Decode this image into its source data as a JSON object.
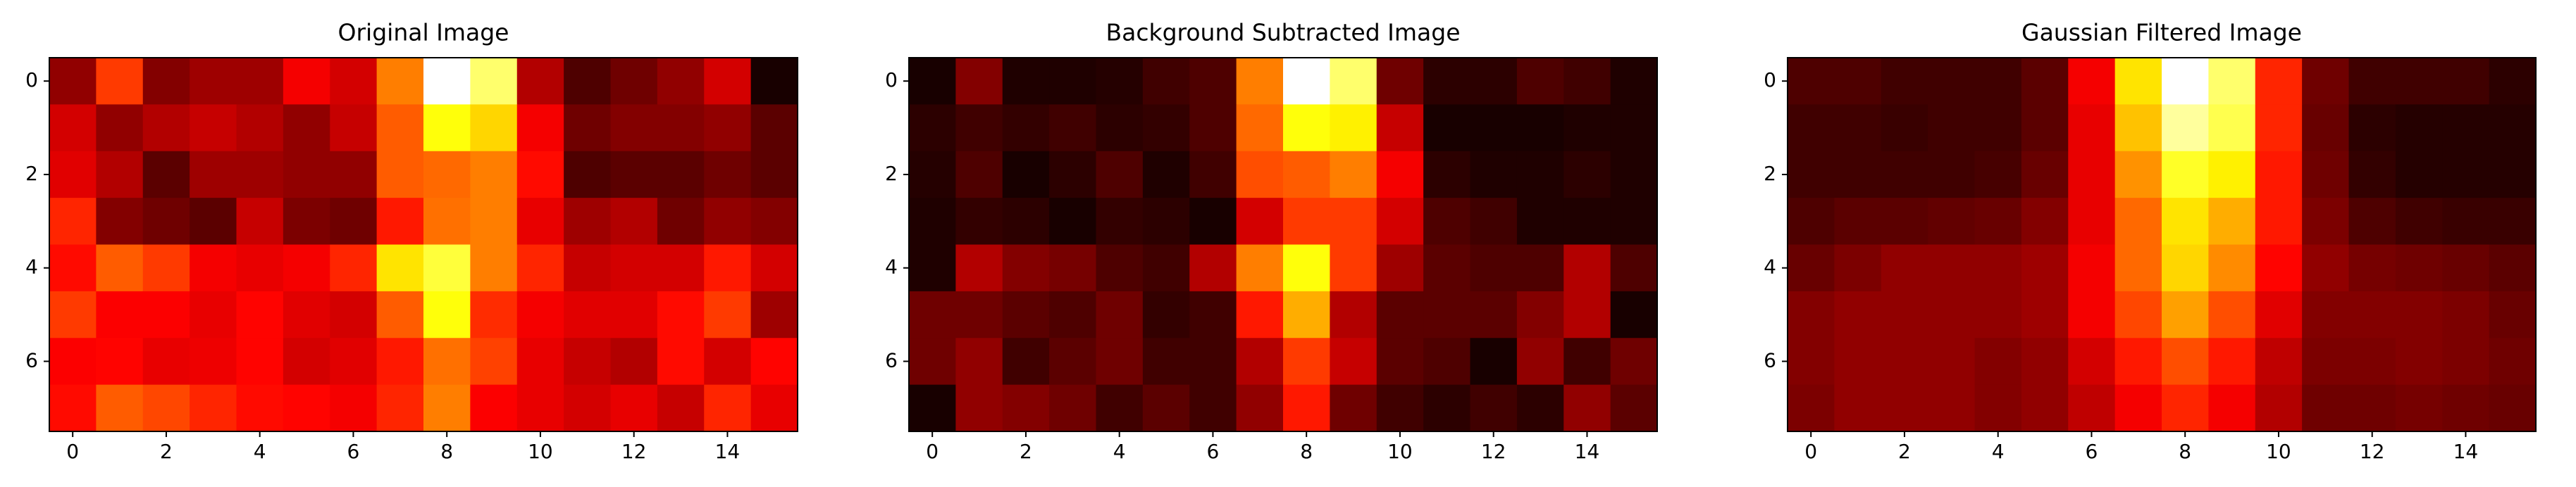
{
  "chart_data": [
    {
      "type": "heatmap",
      "title": "Original Image",
      "colormap": "hot",
      "xlim": [
        -0.5,
        15.5
      ],
      "ylim": [
        7.5,
        -0.5
      ],
      "xticks": [
        0,
        2,
        4,
        6,
        8,
        10,
        12,
        14
      ],
      "yticks": [
        0,
        2,
        4,
        6
      ],
      "z": [
        [
          0.2,
          0.45,
          0.18,
          0.22,
          0.22,
          0.35,
          0.3,
          0.55,
          1.0,
          0.85,
          0.25,
          0.1,
          0.15,
          0.2,
          0.3,
          0.02
        ],
        [
          0.3,
          0.2,
          0.25,
          0.28,
          0.25,
          0.2,
          0.28,
          0.5,
          0.75,
          0.68,
          0.35,
          0.15,
          0.18,
          0.18,
          0.2,
          0.12
        ],
        [
          0.32,
          0.25,
          0.12,
          0.22,
          0.22,
          0.2,
          0.2,
          0.5,
          0.52,
          0.55,
          0.38,
          0.1,
          0.12,
          0.12,
          0.15,
          0.12
        ],
        [
          0.42,
          0.18,
          0.15,
          0.12,
          0.28,
          0.17,
          0.15,
          0.4,
          0.53,
          0.55,
          0.33,
          0.22,
          0.25,
          0.15,
          0.2,
          0.18
        ],
        [
          0.38,
          0.5,
          0.45,
          0.35,
          0.33,
          0.35,
          0.42,
          0.7,
          0.8,
          0.55,
          0.42,
          0.28,
          0.3,
          0.3,
          0.4,
          0.3
        ],
        [
          0.45,
          0.36,
          0.36,
          0.33,
          0.37,
          0.32,
          0.3,
          0.5,
          0.75,
          0.43,
          0.35,
          0.32,
          0.32,
          0.38,
          0.45,
          0.22
        ],
        [
          0.36,
          0.37,
          0.33,
          0.34,
          0.37,
          0.3,
          0.32,
          0.4,
          0.53,
          0.46,
          0.33,
          0.28,
          0.25,
          0.38,
          0.3,
          0.37
        ],
        [
          0.38,
          0.5,
          0.47,
          0.42,
          0.38,
          0.37,
          0.35,
          0.42,
          0.55,
          0.36,
          0.33,
          0.3,
          0.33,
          0.28,
          0.42,
          0.33
        ]
      ]
    },
    {
      "type": "heatmap",
      "title": "Background Subtracted Image",
      "colormap": "hot",
      "xlim": [
        -0.5,
        15.5
      ],
      "ylim": [
        7.5,
        -0.5
      ],
      "xticks": [
        0,
        2,
        4,
        6,
        8,
        10,
        12,
        14
      ],
      "yticks": [
        0,
        2,
        4,
        6
      ],
      "z": [
        [
          0.02,
          0.18,
          0.03,
          0.03,
          0.04,
          0.08,
          0.1,
          0.55,
          1.0,
          0.85,
          0.15,
          0.05,
          0.05,
          0.1,
          0.08,
          0.03
        ],
        [
          0.05,
          0.08,
          0.06,
          0.08,
          0.05,
          0.06,
          0.1,
          0.52,
          0.75,
          0.72,
          0.28,
          0.02,
          0.02,
          0.02,
          0.03,
          0.03
        ],
        [
          0.04,
          0.1,
          0.02,
          0.05,
          0.1,
          0.03,
          0.08,
          0.48,
          0.5,
          0.55,
          0.35,
          0.05,
          0.03,
          0.03,
          0.05,
          0.03
        ],
        [
          0.03,
          0.06,
          0.05,
          0.02,
          0.06,
          0.05,
          0.02,
          0.3,
          0.45,
          0.45,
          0.3,
          0.1,
          0.08,
          0.03,
          0.03,
          0.03
        ],
        [
          0.03,
          0.25,
          0.18,
          0.16,
          0.1,
          0.08,
          0.25,
          0.55,
          0.75,
          0.45,
          0.22,
          0.12,
          0.1,
          0.1,
          0.25,
          0.1
        ],
        [
          0.15,
          0.15,
          0.12,
          0.1,
          0.15,
          0.06,
          0.08,
          0.4,
          0.62,
          0.25,
          0.12,
          0.12,
          0.12,
          0.18,
          0.25,
          0.02
        ],
        [
          0.15,
          0.2,
          0.08,
          0.12,
          0.15,
          0.08,
          0.08,
          0.25,
          0.45,
          0.28,
          0.12,
          0.1,
          0.02,
          0.2,
          0.08,
          0.15
        ],
        [
          0.02,
          0.2,
          0.18,
          0.15,
          0.08,
          0.12,
          0.08,
          0.2,
          0.4,
          0.15,
          0.08,
          0.05,
          0.08,
          0.05,
          0.2,
          0.12
        ]
      ]
    },
    {
      "type": "heatmap",
      "title": "Gaussian Filtered Image",
      "colormap": "hot",
      "xlim": [
        -0.5,
        15.5
      ],
      "ylim": [
        7.5,
        -0.5
      ],
      "xticks": [
        0,
        2,
        4,
        6,
        8,
        10,
        12,
        14
      ],
      "yticks": [
        0,
        2,
        4,
        6
      ],
      "z": [
        [
          0.1,
          0.1,
          0.08,
          0.08,
          0.08,
          0.12,
          0.35,
          0.7,
          1.0,
          0.85,
          0.42,
          0.15,
          0.08,
          0.08,
          0.08,
          0.05
        ],
        [
          0.08,
          0.08,
          0.07,
          0.08,
          0.08,
          0.12,
          0.33,
          0.65,
          0.9,
          0.82,
          0.42,
          0.14,
          0.05,
          0.04,
          0.04,
          0.04
        ],
        [
          0.08,
          0.08,
          0.08,
          0.08,
          0.09,
          0.14,
          0.33,
          0.58,
          0.78,
          0.72,
          0.4,
          0.15,
          0.06,
          0.04,
          0.04,
          0.04
        ],
        [
          0.1,
          0.12,
          0.12,
          0.13,
          0.14,
          0.18,
          0.33,
          0.52,
          0.7,
          0.62,
          0.4,
          0.17,
          0.1,
          0.08,
          0.07,
          0.07
        ],
        [
          0.14,
          0.17,
          0.2,
          0.2,
          0.2,
          0.22,
          0.35,
          0.52,
          0.68,
          0.57,
          0.37,
          0.2,
          0.16,
          0.15,
          0.14,
          0.12
        ],
        [
          0.18,
          0.2,
          0.2,
          0.2,
          0.2,
          0.22,
          0.35,
          0.47,
          0.6,
          0.48,
          0.32,
          0.18,
          0.18,
          0.18,
          0.17,
          0.14
        ],
        [
          0.18,
          0.2,
          0.2,
          0.2,
          0.18,
          0.2,
          0.3,
          0.4,
          0.48,
          0.4,
          0.27,
          0.17,
          0.17,
          0.18,
          0.17,
          0.15
        ],
        [
          0.17,
          0.2,
          0.2,
          0.2,
          0.18,
          0.2,
          0.27,
          0.35,
          0.42,
          0.35,
          0.25,
          0.15,
          0.15,
          0.16,
          0.15,
          0.14
        ]
      ]
    }
  ]
}
